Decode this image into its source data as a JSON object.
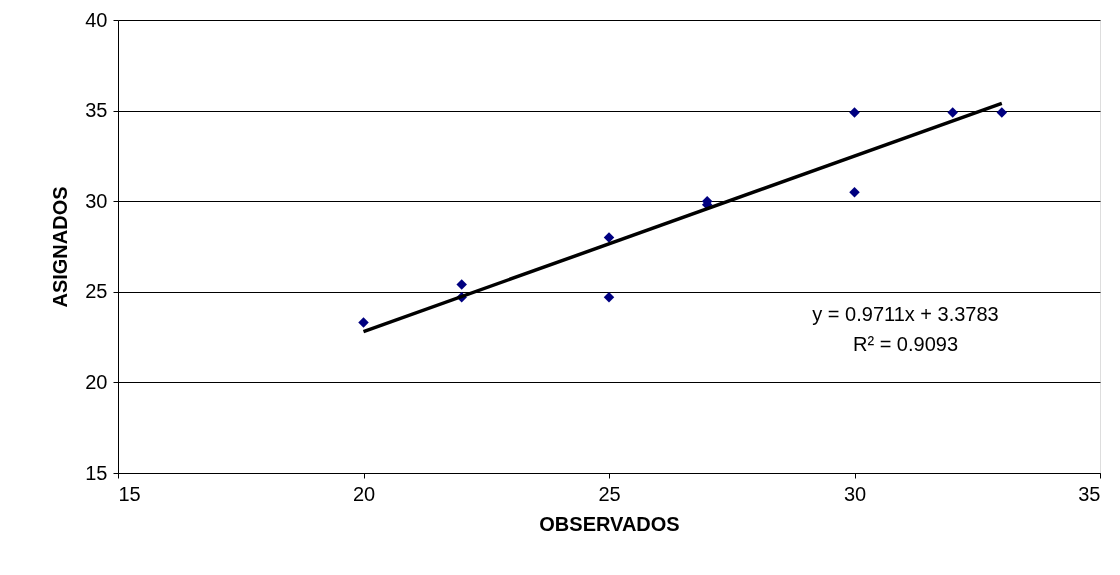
{
  "chart_data": {
    "type": "scatter",
    "xlabel": "OBSERVADOS",
    "ylabel": "ASIGNADOS",
    "xlim": [
      15,
      35
    ],
    "xticks": [
      15,
      20,
      25,
      30,
      35
    ],
    "ylim": [
      15,
      40
    ],
    "yticks": [
      15,
      20,
      25,
      30,
      35,
      40
    ],
    "grid": "y",
    "series": [
      {
        "color": "#000080",
        "marker": "diamond",
        "x": [
          20,
          22,
          22,
          25,
          25,
          27,
          27,
          30,
          30,
          32,
          33
        ],
        "values": [
          23.3,
          25.4,
          24.7,
          28.0,
          24.7,
          30.0,
          29.8,
          34.9,
          30.5,
          34.9,
          34.9
        ]
      },
      {
        "type": "line",
        "color": "#000000",
        "line_style": "solid",
        "x": [
          20,
          33
        ],
        "values": [
          22.8,
          35.4
        ]
      }
    ],
    "annotations": [
      "y = 0.9711x + 3.3783",
      "R² = 0.9093"
    ]
  }
}
